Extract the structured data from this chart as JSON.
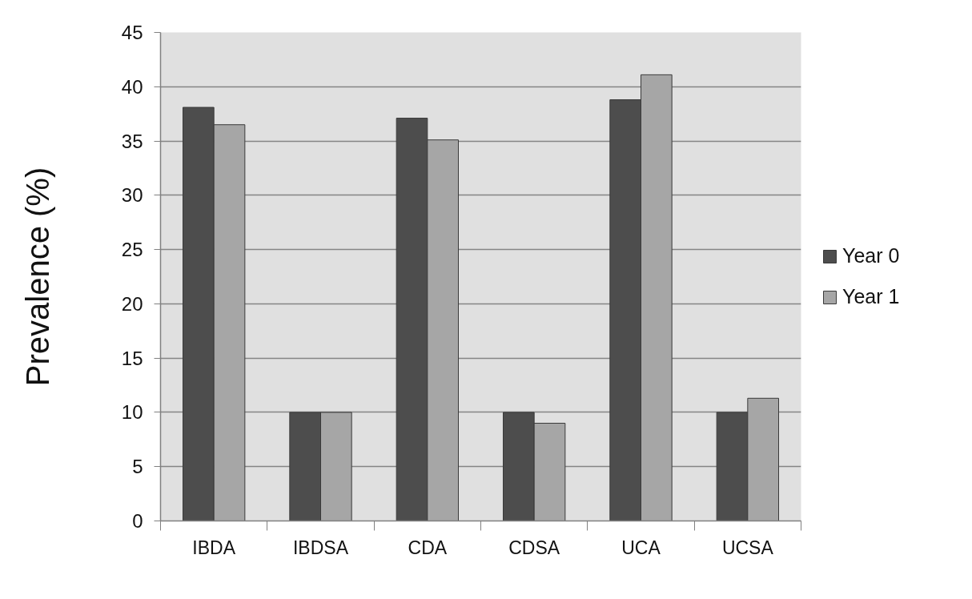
{
  "chart_data": {
    "type": "bar",
    "ylabel": "Prevalence (%)",
    "categories": [
      "IBDA",
      "IBDSA",
      "CDA",
      "CDSA",
      "UCA",
      "UCSA"
    ],
    "series": [
      {
        "name": "Year 0",
        "color": "#4d4d4d",
        "values": [
          38.1,
          10,
          37.1,
          10,
          38.8,
          10
        ]
      },
      {
        "name": "Year 1",
        "color": "#a6a6a6",
        "values": [
          36.5,
          10,
          35.1,
          9,
          41.1,
          11.3
        ]
      }
    ],
    "ylim": [
      0,
      45
    ],
    "yticks": [
      0,
      5,
      10,
      15,
      20,
      25,
      30,
      35,
      40,
      45
    ],
    "grid": "y",
    "legend": "right"
  }
}
